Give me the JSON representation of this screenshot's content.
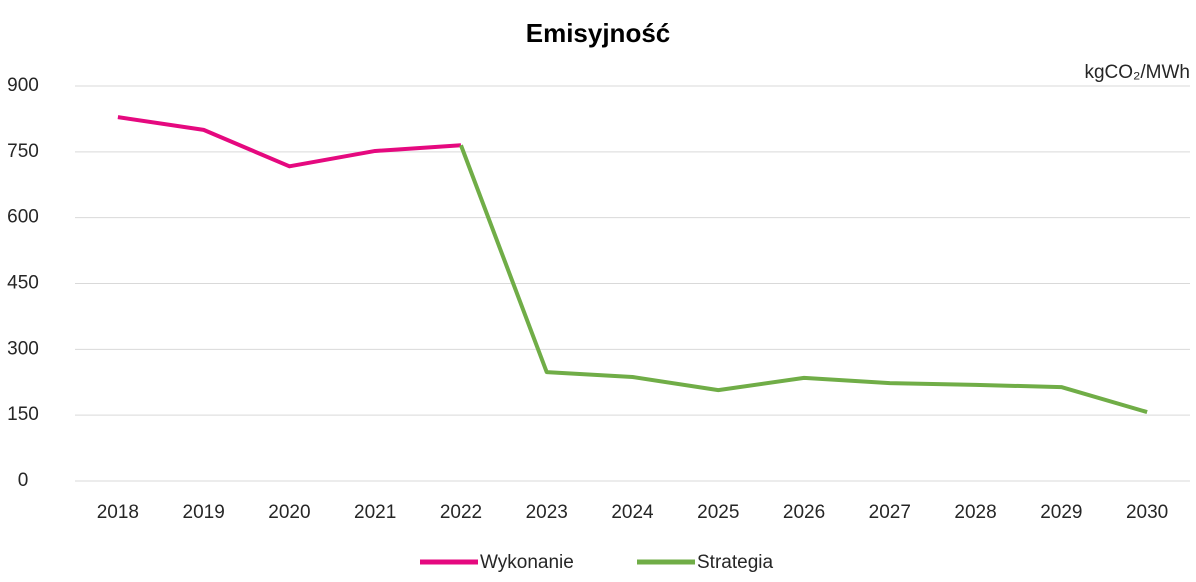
{
  "chart_data": {
    "type": "line",
    "title": "Emisyjność",
    "y_label": "kgCO₂/MWh",
    "categories": [
      "2018",
      "2019",
      "2020",
      "2021",
      "2022",
      "2023",
      "2024",
      "2025",
      "2026",
      "2027",
      "2028",
      "2029",
      "2030"
    ],
    "series": [
      {
        "name": "Wykonanie",
        "color": "#e5097f",
        "values": [
          829,
          800,
          717,
          752,
          765,
          null,
          null,
          null,
          null,
          null,
          null,
          null,
          null
        ]
      },
      {
        "name": "Strategia",
        "color": "#70ad47",
        "values": [
          null,
          null,
          null,
          null,
          765,
          248,
          237,
          207,
          235,
          223,
          219,
          214,
          157
        ]
      }
    ],
    "ylim": [
      0,
      900
    ],
    "yticks": [
      0,
      150,
      300,
      450,
      600,
      750,
      900
    ],
    "grid": true,
    "legend": "bottom"
  }
}
